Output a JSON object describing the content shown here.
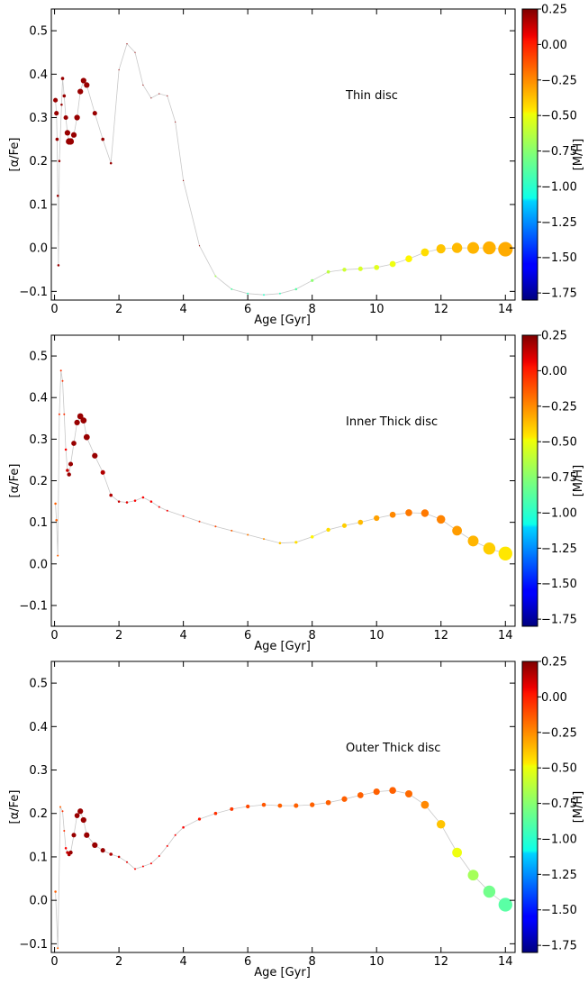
{
  "chart_data": [
    {
      "type": "scatter",
      "annotation": "Thin disc",
      "xlabel": "Age [Gyr]",
      "ylabel": "[α/Fe]",
      "colorbar_label": "[M/H]",
      "xlim": [
        -0.1,
        14.3
      ],
      "ylim": [
        -0.12,
        0.55
      ],
      "xticks": [
        0,
        2,
        4,
        6,
        8,
        10,
        12,
        14
      ],
      "yticks": [
        -0.1,
        0.0,
        0.1,
        0.2,
        0.3,
        0.4,
        0.5
      ],
      "clim": [
        -1.8,
        0.25
      ],
      "cticks": [
        0.25,
        0.0,
        -0.25,
        -0.5,
        -0.75,
        -1.0,
        -1.25,
        -1.5,
        -1.75
      ],
      "colormap": "jet",
      "grid": false,
      "points": [
        {
          "age": 0.03,
          "alpha": 0.34,
          "mh": 0.2,
          "weight": 0.02
        },
        {
          "age": 0.06,
          "alpha": 0.31,
          "mh": 0.2,
          "weight": 0.02
        },
        {
          "age": 0.08,
          "alpha": 0.25,
          "mh": 0.2,
          "weight": 0.01
        },
        {
          "age": 0.1,
          "alpha": 0.12,
          "mh": 0.2,
          "weight": 0.005
        },
        {
          "age": 0.12,
          "alpha": -0.04,
          "mh": 0.2,
          "weight": 0.005
        },
        {
          "age": 0.15,
          "alpha": 0.2,
          "mh": 0.2,
          "weight": 0.005
        },
        {
          "age": 0.22,
          "alpha": 0.33,
          "mh": 0.2,
          "weight": 0.005
        },
        {
          "age": 0.25,
          "alpha": 0.39,
          "mh": 0.2,
          "weight": 0.01
        },
        {
          "age": 0.3,
          "alpha": 0.35,
          "mh": 0.2,
          "weight": 0.01
        },
        {
          "age": 0.35,
          "alpha": 0.3,
          "mh": 0.2,
          "weight": 0.02
        },
        {
          "age": 0.4,
          "alpha": 0.265,
          "mh": 0.2,
          "weight": 0.03
        },
        {
          "age": 0.45,
          "alpha": 0.245,
          "mh": 0.2,
          "weight": 0.04
        },
        {
          "age": 0.5,
          "alpha": 0.245,
          "mh": 0.2,
          "weight": 0.04
        },
        {
          "age": 0.6,
          "alpha": 0.26,
          "mh": 0.2,
          "weight": 0.03
        },
        {
          "age": 0.7,
          "alpha": 0.3,
          "mh": 0.2,
          "weight": 0.03
        },
        {
          "age": 0.8,
          "alpha": 0.36,
          "mh": 0.2,
          "weight": 0.03
        },
        {
          "age": 0.9,
          "alpha": 0.385,
          "mh": 0.2,
          "weight": 0.03
        },
        {
          "age": 1.0,
          "alpha": 0.375,
          "mh": 0.2,
          "weight": 0.03
        },
        {
          "age": 1.25,
          "alpha": 0.31,
          "mh": 0.2,
          "weight": 0.02
        },
        {
          "age": 1.5,
          "alpha": 0.25,
          "mh": 0.2,
          "weight": 0.01
        },
        {
          "age": 1.75,
          "alpha": 0.195,
          "mh": 0.2,
          "weight": 0.005
        },
        {
          "age": 2.0,
          "alpha": 0.41,
          "mh": 0.2,
          "weight": 0.0
        },
        {
          "age": 2.25,
          "alpha": 0.47,
          "mh": 0.2,
          "weight": 0.0
        },
        {
          "age": 2.5,
          "alpha": 0.45,
          "mh": 0.2,
          "weight": 0.0
        },
        {
          "age": 2.75,
          "alpha": 0.375,
          "mh": 0.2,
          "weight": 0.0
        },
        {
          "age": 3.0,
          "alpha": 0.345,
          "mh": 0.2,
          "weight": 0.0
        },
        {
          "age": 3.25,
          "alpha": 0.355,
          "mh": 0.2,
          "weight": 0.0
        },
        {
          "age": 3.5,
          "alpha": 0.35,
          "mh": 0.2,
          "weight": 0.0
        },
        {
          "age": 3.75,
          "alpha": 0.29,
          "mh": 0.2,
          "weight": 0.0
        },
        {
          "age": 4.0,
          "alpha": 0.155,
          "mh": 0.2,
          "weight": 0.0
        },
        {
          "age": 4.5,
          "alpha": 0.005,
          "mh": 0.2,
          "weight": 0.0
        },
        {
          "age": 5.0,
          "alpha": -0.065,
          "mh": -0.7,
          "weight": 0.003
        },
        {
          "age": 5.5,
          "alpha": -0.095,
          "mh": -0.85,
          "weight": 0.003
        },
        {
          "age": 6.0,
          "alpha": -0.105,
          "mh": -0.9,
          "weight": 0.003
        },
        {
          "age": 6.5,
          "alpha": -0.108,
          "mh": -0.92,
          "weight": 0.003
        },
        {
          "age": 7.0,
          "alpha": -0.105,
          "mh": -0.9,
          "weight": 0.003
        },
        {
          "age": 7.5,
          "alpha": -0.095,
          "mh": -0.85,
          "weight": 0.005
        },
        {
          "age": 8.0,
          "alpha": -0.075,
          "mh": -0.75,
          "weight": 0.008
        },
        {
          "age": 8.5,
          "alpha": -0.055,
          "mh": -0.65,
          "weight": 0.01
        },
        {
          "age": 9.0,
          "alpha": -0.05,
          "mh": -0.62,
          "weight": 0.015
        },
        {
          "age": 9.5,
          "alpha": -0.048,
          "mh": -0.6,
          "weight": 0.02
        },
        {
          "age": 10.0,
          "alpha": -0.045,
          "mh": -0.58,
          "weight": 0.025
        },
        {
          "age": 10.5,
          "alpha": -0.037,
          "mh": -0.55,
          "weight": 0.035
        },
        {
          "age": 11.0,
          "alpha": -0.025,
          "mh": -0.5,
          "weight": 0.045
        },
        {
          "age": 11.5,
          "alpha": -0.01,
          "mh": -0.45,
          "weight": 0.06
        },
        {
          "age": 12.0,
          "alpha": -0.002,
          "mh": -0.4,
          "weight": 0.08
        },
        {
          "age": 12.5,
          "alpha": 0.0,
          "mh": -0.38,
          "weight": 0.1
        },
        {
          "age": 13.0,
          "alpha": 0.0,
          "mh": -0.37,
          "weight": 0.13
        },
        {
          "age": 13.5,
          "alpha": 0.0,
          "mh": -0.36,
          "weight": 0.16
        },
        {
          "age": 14.0,
          "alpha": -0.003,
          "mh": -0.35,
          "weight": 0.2
        }
      ]
    },
    {
      "type": "scatter",
      "annotation": "Inner Thick disc",
      "xlabel": "Age [Gyr]",
      "ylabel": "[α/Fe]",
      "colorbar_label": "[M/H]",
      "xlim": [
        -0.1,
        14.3
      ],
      "ylim": [
        -0.15,
        0.55
      ],
      "xticks": [
        0,
        2,
        4,
        6,
        8,
        10,
        12,
        14
      ],
      "yticks": [
        -0.1,
        0.0,
        0.1,
        0.2,
        0.3,
        0.4,
        0.5
      ],
      "clim": [
        -1.8,
        0.25
      ],
      "cticks": [
        0.25,
        0.0,
        -0.25,
        -0.5,
        -0.75,
        -1.0,
        -1.25,
        -1.5,
        -1.75
      ],
      "colormap": "jet",
      "grid": false,
      "points": [
        {
          "age": 0.03,
          "alpha": 0.145,
          "mh": -0.2,
          "weight": 0.005
        },
        {
          "age": 0.06,
          "alpha": 0.105,
          "mh": -0.2,
          "weight": 0.005
        },
        {
          "age": 0.1,
          "alpha": 0.02,
          "mh": -0.2,
          "weight": 0.003
        },
        {
          "age": 0.15,
          "alpha": 0.36,
          "mh": -0.1,
          "weight": 0.003
        },
        {
          "age": 0.2,
          "alpha": 0.465,
          "mh": -0.1,
          "weight": 0.003
        },
        {
          "age": 0.25,
          "alpha": 0.44,
          "mh": -0.1,
          "weight": 0.003
        },
        {
          "age": 0.3,
          "alpha": 0.36,
          "mh": -0.1,
          "weight": 0.003
        },
        {
          "age": 0.35,
          "alpha": 0.275,
          "mh": 0.0,
          "weight": 0.005
        },
        {
          "age": 0.4,
          "alpha": 0.225,
          "mh": 0.1,
          "weight": 0.01
        },
        {
          "age": 0.45,
          "alpha": 0.215,
          "mh": 0.2,
          "weight": 0.015
        },
        {
          "age": 0.5,
          "alpha": 0.24,
          "mh": 0.2,
          "weight": 0.02
        },
        {
          "age": 0.6,
          "alpha": 0.29,
          "mh": 0.2,
          "weight": 0.025
        },
        {
          "age": 0.7,
          "alpha": 0.34,
          "mh": 0.2,
          "weight": 0.03
        },
        {
          "age": 0.8,
          "alpha": 0.355,
          "mh": 0.2,
          "weight": 0.035
        },
        {
          "age": 0.9,
          "alpha": 0.345,
          "mh": 0.2,
          "weight": 0.035
        },
        {
          "age": 1.0,
          "alpha": 0.305,
          "mh": 0.2,
          "weight": 0.035
        },
        {
          "age": 1.25,
          "alpha": 0.26,
          "mh": 0.2,
          "weight": 0.03
        },
        {
          "age": 1.5,
          "alpha": 0.22,
          "mh": 0.15,
          "weight": 0.02
        },
        {
          "age": 1.75,
          "alpha": 0.165,
          "mh": 0.15,
          "weight": 0.01
        },
        {
          "age": 2.0,
          "alpha": 0.15,
          "mh": 0.1,
          "weight": 0.005
        },
        {
          "age": 2.25,
          "alpha": 0.148,
          "mh": 0.05,
          "weight": 0.005
        },
        {
          "age": 2.5,
          "alpha": 0.152,
          "mh": 0.0,
          "weight": 0.005
        },
        {
          "age": 2.75,
          "alpha": 0.16,
          "mh": 0.0,
          "weight": 0.005
        },
        {
          "age": 3.0,
          "alpha": 0.15,
          "mh": 0.0,
          "weight": 0.005
        },
        {
          "age": 3.25,
          "alpha": 0.137,
          "mh": 0.0,
          "weight": 0.003
        },
        {
          "age": 3.5,
          "alpha": 0.128,
          "mh": 0.0,
          "weight": 0.003
        },
        {
          "age": 4.0,
          "alpha": 0.115,
          "mh": -0.05,
          "weight": 0.003
        },
        {
          "age": 4.5,
          "alpha": 0.102,
          "mh": -0.1,
          "weight": 0.003
        },
        {
          "age": 5.0,
          "alpha": 0.09,
          "mh": -0.15,
          "weight": 0.003
        },
        {
          "age": 5.5,
          "alpha": 0.08,
          "mh": -0.2,
          "weight": 0.003
        },
        {
          "age": 6.0,
          "alpha": 0.07,
          "mh": -0.25,
          "weight": 0.003
        },
        {
          "age": 6.5,
          "alpha": 0.06,
          "mh": -0.3,
          "weight": 0.003
        },
        {
          "age": 7.0,
          "alpha": 0.05,
          "mh": -0.4,
          "weight": 0.005
        },
        {
          "age": 7.5,
          "alpha": 0.052,
          "mh": -0.45,
          "weight": 0.008
        },
        {
          "age": 8.0,
          "alpha": 0.065,
          "mh": -0.5,
          "weight": 0.01
        },
        {
          "age": 8.5,
          "alpha": 0.082,
          "mh": -0.45,
          "weight": 0.015
        },
        {
          "age": 9.0,
          "alpha": 0.092,
          "mh": -0.42,
          "weight": 0.02
        },
        {
          "age": 9.5,
          "alpha": 0.1,
          "mh": -0.38,
          "weight": 0.025
        },
        {
          "age": 10.0,
          "alpha": 0.11,
          "mh": -0.33,
          "weight": 0.03
        },
        {
          "age": 10.5,
          "alpha": 0.118,
          "mh": -0.28,
          "weight": 0.035
        },
        {
          "age": 11.0,
          "alpha": 0.123,
          "mh": -0.25,
          "weight": 0.045
        },
        {
          "age": 11.5,
          "alpha": 0.122,
          "mh": -0.25,
          "weight": 0.055
        },
        {
          "age": 12.0,
          "alpha": 0.107,
          "mh": -0.27,
          "weight": 0.07
        },
        {
          "age": 12.5,
          "alpha": 0.08,
          "mh": -0.32,
          "weight": 0.09
        },
        {
          "age": 13.0,
          "alpha": 0.055,
          "mh": -0.37,
          "weight": 0.11
        },
        {
          "age": 13.5,
          "alpha": 0.037,
          "mh": -0.42,
          "weight": 0.14
        },
        {
          "age": 14.0,
          "alpha": 0.025,
          "mh": -0.47,
          "weight": 0.18
        }
      ]
    },
    {
      "type": "scatter",
      "annotation": "Outer Thick disc",
      "xlabel": "Age [Gyr]",
      "ylabel": "[α/Fe]",
      "colorbar_label": "[M/H]",
      "xlim": [
        -0.1,
        14.3
      ],
      "ylim": [
        -0.12,
        0.55
      ],
      "xticks": [
        0,
        2,
        4,
        6,
        8,
        10,
        12,
        14
      ],
      "yticks": [
        -0.1,
        0.0,
        0.1,
        0.2,
        0.3,
        0.4,
        0.5
      ],
      "clim": [
        -1.8,
        0.25
      ],
      "cticks": [
        0.25,
        0.0,
        -0.25,
        -0.5,
        -0.75,
        -1.0,
        -1.25,
        -1.5,
        -1.75
      ],
      "colormap": "jet",
      "grid": false,
      "points": [
        {
          "age": 0.03,
          "alpha": 0.02,
          "mh": -0.2,
          "weight": 0.005
        },
        {
          "age": 0.1,
          "alpha": -0.11,
          "mh": -0.2,
          "weight": 0.003
        },
        {
          "age": 0.18,
          "alpha": 0.215,
          "mh": -0.2,
          "weight": 0.003
        },
        {
          "age": 0.25,
          "alpha": 0.205,
          "mh": -0.1,
          "weight": 0.003
        },
        {
          "age": 0.3,
          "alpha": 0.16,
          "mh": -0.1,
          "weight": 0.003
        },
        {
          "age": 0.35,
          "alpha": 0.12,
          "mh": 0.0,
          "weight": 0.005
        },
        {
          "age": 0.4,
          "alpha": 0.11,
          "mh": 0.1,
          "weight": 0.008
        },
        {
          "age": 0.45,
          "alpha": 0.105,
          "mh": 0.15,
          "weight": 0.01
        },
        {
          "age": 0.5,
          "alpha": 0.11,
          "mh": 0.2,
          "weight": 0.015
        },
        {
          "age": 0.6,
          "alpha": 0.15,
          "mh": 0.2,
          "weight": 0.02
        },
        {
          "age": 0.7,
          "alpha": 0.195,
          "mh": 0.2,
          "weight": 0.025
        },
        {
          "age": 0.8,
          "alpha": 0.205,
          "mh": 0.2,
          "weight": 0.03
        },
        {
          "age": 0.9,
          "alpha": 0.185,
          "mh": 0.2,
          "weight": 0.03
        },
        {
          "age": 1.0,
          "alpha": 0.15,
          "mh": 0.2,
          "weight": 0.03
        },
        {
          "age": 1.25,
          "alpha": 0.127,
          "mh": 0.2,
          "weight": 0.03
        },
        {
          "age": 1.5,
          "alpha": 0.115,
          "mh": 0.2,
          "weight": 0.02
        },
        {
          "age": 1.75,
          "alpha": 0.106,
          "mh": 0.15,
          "weight": 0.01
        },
        {
          "age": 2.0,
          "alpha": 0.1,
          "mh": 0.1,
          "weight": 0.005
        },
        {
          "age": 2.25,
          "alpha": 0.088,
          "mh": 0.05,
          "weight": 0.003
        },
        {
          "age": 2.5,
          "alpha": 0.072,
          "mh": 0.0,
          "weight": 0.003
        },
        {
          "age": 2.75,
          "alpha": 0.078,
          "mh": 0.0,
          "weight": 0.003
        },
        {
          "age": 3.0,
          "alpha": 0.085,
          "mh": 0.0,
          "weight": 0.003
        },
        {
          "age": 3.25,
          "alpha": 0.102,
          "mh": 0.0,
          "weight": 0.003
        },
        {
          "age": 3.5,
          "alpha": 0.125,
          "mh": 0.0,
          "weight": 0.003
        },
        {
          "age": 3.75,
          "alpha": 0.15,
          "mh": 0.0,
          "weight": 0.003
        },
        {
          "age": 4.0,
          "alpha": 0.168,
          "mh": 0.0,
          "weight": 0.005
        },
        {
          "age": 4.5,
          "alpha": 0.187,
          "mh": -0.05,
          "weight": 0.008
        },
        {
          "age": 5.0,
          "alpha": 0.2,
          "mh": -0.1,
          "weight": 0.01
        },
        {
          "age": 5.5,
          "alpha": 0.21,
          "mh": -0.12,
          "weight": 0.012
        },
        {
          "age": 6.0,
          "alpha": 0.216,
          "mh": -0.15,
          "weight": 0.014
        },
        {
          "age": 6.5,
          "alpha": 0.22,
          "mh": -0.18,
          "weight": 0.016
        },
        {
          "age": 7.0,
          "alpha": 0.218,
          "mh": -0.2,
          "weight": 0.018
        },
        {
          "age": 7.5,
          "alpha": 0.218,
          "mh": -0.2,
          "weight": 0.02
        },
        {
          "age": 8.0,
          "alpha": 0.22,
          "mh": -0.2,
          "weight": 0.022
        },
        {
          "age": 8.5,
          "alpha": 0.225,
          "mh": -0.2,
          "weight": 0.025
        },
        {
          "age": 9.0,
          "alpha": 0.233,
          "mh": -0.2,
          "weight": 0.03
        },
        {
          "age": 9.5,
          "alpha": 0.242,
          "mh": -0.2,
          "weight": 0.035
        },
        {
          "age": 10.0,
          "alpha": 0.25,
          "mh": -0.2,
          "weight": 0.04
        },
        {
          "age": 10.5,
          "alpha": 0.253,
          "mh": -0.2,
          "weight": 0.045
        },
        {
          "age": 11.0,
          "alpha": 0.245,
          "mh": -0.22,
          "weight": 0.05
        },
        {
          "age": 11.5,
          "alpha": 0.22,
          "mh": -0.28,
          "weight": 0.06
        },
        {
          "age": 12.0,
          "alpha": 0.175,
          "mh": -0.4,
          "weight": 0.07
        },
        {
          "age": 12.5,
          "alpha": 0.11,
          "mh": -0.55,
          "weight": 0.09
        },
        {
          "age": 13.0,
          "alpha": 0.058,
          "mh": -0.7,
          "weight": 0.11
        },
        {
          "age": 13.5,
          "alpha": 0.02,
          "mh": -0.8,
          "weight": 0.14
        },
        {
          "age": 14.0,
          "alpha": -0.01,
          "mh": -0.85,
          "weight": 0.18
        }
      ]
    }
  ]
}
